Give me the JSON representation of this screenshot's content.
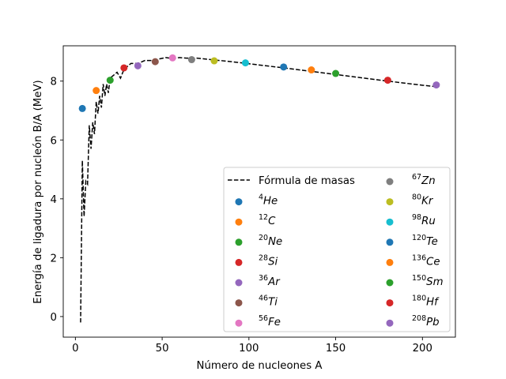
{
  "chart_data": {
    "type": "scatter",
    "xlabel": "Número de nucleones A",
    "ylabel": "Energía de ligadura por nucleón B/A (MeV)",
    "xlim": [
      -7,
      219
    ],
    "ylim": [
      -0.7,
      9.2
    ],
    "xticks": [
      "0",
      "50",
      "100",
      "150",
      "200"
    ],
    "yticks": [
      "0",
      "2",
      "4",
      "6",
      "8"
    ],
    "grid": false,
    "legend_position": "lower-right",
    "line_series": {
      "name": "Fórmula de masas",
      "style": "dashed",
      "color": "#000000",
      "x": [
        3,
        4,
        5,
        6,
        7,
        8,
        9,
        10,
        11,
        12,
        13,
        14,
        15,
        16,
        17,
        18,
        19,
        20,
        22,
        24,
        26,
        28,
        30,
        32,
        36,
        40,
        44,
        48,
        52,
        56,
        60,
        64,
        70,
        80,
        90,
        100,
        120,
        140,
        160,
        180,
        200,
        208
      ],
      "y": [
        -0.2,
        5.3,
        3.4,
        4.6,
        4.5,
        6.5,
        5.7,
        6.6,
        6.2,
        7.3,
        6.9,
        7.5,
        7.1,
        7.9,
        7.5,
        7.9,
        7.6,
        8.1,
        8.2,
        8.3,
        8.1,
        8.4,
        8.5,
        8.6,
        8.6,
        8.7,
        8.7,
        8.75,
        8.8,
        8.77,
        8.8,
        8.78,
        8.78,
        8.72,
        8.66,
        8.59,
        8.45,
        8.3,
        8.15,
        8.0,
        7.86,
        7.81
      ]
    },
    "points": [
      {
        "sup": "4",
        "sym": "He",
        "x": 4,
        "y": 7.07,
        "color": "#1f77b4"
      },
      {
        "sup": "12",
        "sym": "C",
        "x": 12,
        "y": 7.68,
        "color": "#ff7f0e"
      },
      {
        "sup": "20",
        "sym": "Ne",
        "x": 20,
        "y": 8.03,
        "color": "#2ca02c"
      },
      {
        "sup": "28",
        "sym": "Si",
        "x": 28,
        "y": 8.45,
        "color": "#d62728"
      },
      {
        "sup": "36",
        "sym": "Ar",
        "x": 36,
        "y": 8.52,
        "color": "#9467bd"
      },
      {
        "sup": "46",
        "sym": "Ti",
        "x": 46,
        "y": 8.66,
        "color": "#8c564b"
      },
      {
        "sup": "56",
        "sym": "Fe",
        "x": 56,
        "y": 8.79,
        "color": "#e377c2"
      },
      {
        "sup": "67",
        "sym": "Zn",
        "x": 67,
        "y": 8.73,
        "color": "#7f7f7f"
      },
      {
        "sup": "80",
        "sym": "Kr",
        "x": 80,
        "y": 8.69,
        "color": "#bcbd22"
      },
      {
        "sup": "98",
        "sym": "Ru",
        "x": 98,
        "y": 8.62,
        "color": "#17becf"
      },
      {
        "sup": "120",
        "sym": "Te",
        "x": 120,
        "y": 8.48,
        "color": "#1f77b4"
      },
      {
        "sup": "136",
        "sym": "Ce",
        "x": 136,
        "y": 8.38,
        "color": "#ff7f0e"
      },
      {
        "sup": "150",
        "sym": "Sm",
        "x": 150,
        "y": 8.26,
        "color": "#2ca02c"
      },
      {
        "sup": "180",
        "sym": "Hf",
        "x": 180,
        "y": 8.03,
        "color": "#d62728"
      },
      {
        "sup": "208",
        "sym": "Pb",
        "x": 208,
        "y": 7.87,
        "color": "#9467bd"
      }
    ]
  }
}
